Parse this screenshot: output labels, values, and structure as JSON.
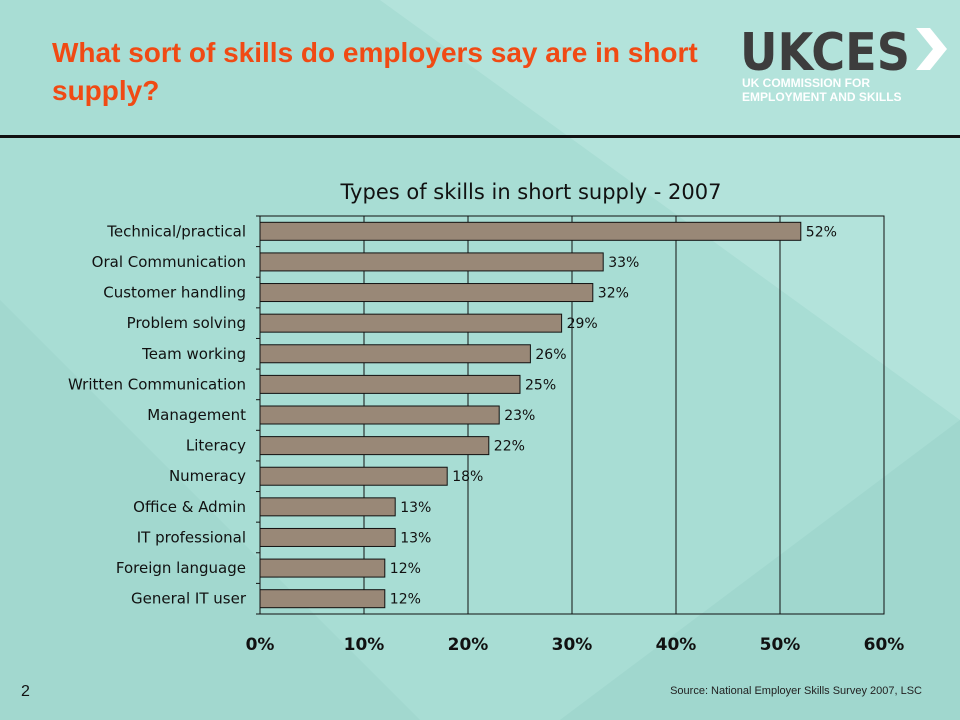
{
  "slide": {
    "title": "What sort of skills do employers say are in short supply?",
    "logo_text": "UKCES",
    "logo_subtitle": "UK COMMISSION FOR EMPLOYMENT AND SKILLS",
    "source": "Source: National Employer Skills Survey 2007, LSC",
    "page_number": "2"
  },
  "colors": {
    "background": "#a8ddd4",
    "title": "#f04a14",
    "bar_fill": "#998877",
    "logo": "#3d3d3d"
  },
  "chart_data": {
    "type": "bar",
    "orientation": "horizontal",
    "title": "Types of skills in short supply - 2007",
    "categories": [
      "Technical/practical",
      "Oral Communication",
      "Customer handling",
      "Problem solving",
      "Team working",
      "Written Communication",
      "Management",
      "Literacy",
      "Numeracy",
      "Office & Admin",
      "IT professional",
      "Foreign language",
      "General IT user"
    ],
    "values": [
      52,
      33,
      32,
      29,
      26,
      25,
      23,
      22,
      18,
      13,
      13,
      12,
      12
    ],
    "value_labels": [
      "52%",
      "33%",
      "32%",
      "29%",
      "26%",
      "25%",
      "23%",
      "22%",
      "18%",
      "13%",
      "13%",
      "12%",
      "12%"
    ],
    "xlim": [
      0,
      60
    ],
    "x_ticks": [
      0,
      10,
      20,
      30,
      40,
      50,
      60
    ],
    "x_tick_labels": [
      "0%",
      "10%",
      "20%",
      "30%",
      "40%",
      "50%",
      "60%"
    ],
    "xlabel": "",
    "ylabel": "",
    "grid": true,
    "legend": "none"
  }
}
